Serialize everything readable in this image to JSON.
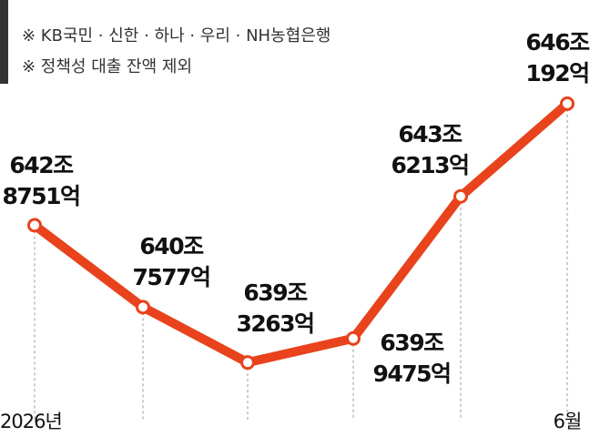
{
  "chart_data": {
    "type": "line",
    "notes": [
      "※ KB국민 · 신한 · 하나 · 우리 · NH농협은행",
      "※ 정책성 대출 잔액 제외"
    ],
    "categories": [
      "2026년",
      null,
      null,
      null,
      null,
      "6월"
    ],
    "values": [
      642.8751,
      640.7577,
      639.3263,
      639.9475,
      643.6213,
      646.0192
    ],
    "value_labels": [
      [
        "642조",
        "8751억"
      ],
      [
        "640조",
        "7577억"
      ],
      [
        "639조",
        "3263억"
      ],
      [
        "639조",
        "9475억"
      ],
      [
        "643조",
        "6213억"
      ],
      [
        "646조",
        "192억"
      ]
    ],
    "color": "#e8431c",
    "ylim": [
      637.4,
      648.7
    ]
  }
}
